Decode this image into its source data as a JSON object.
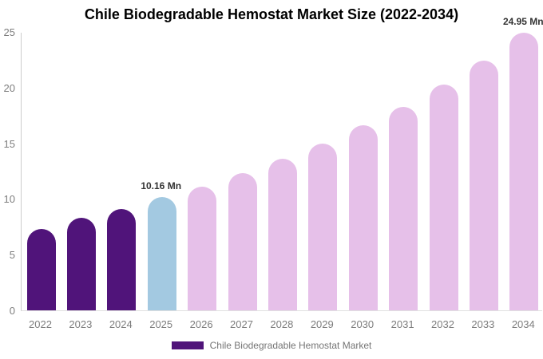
{
  "title": "Chile Biodegradable Hemostat Market Size (2022-2034)",
  "legend": {
    "label": "Chile Biodegradable Hemostat Market",
    "swatch_color": "#50147a"
  },
  "colors": {
    "historical_bar": "#50147a",
    "base_year_bar": "#a3c9e1",
    "forecast_bar": "#e6c0e9",
    "axis_text": "#7d7d7d",
    "label_text": "#333333"
  },
  "chart_data": {
    "type": "bar",
    "title": "Chile Biodegradable Hemostat Market Size (2022-2034)",
    "unit": "Mn",
    "categories": [
      "2022",
      "2023",
      "2024",
      "2025",
      "2026",
      "2027",
      "2028",
      "2029",
      "2030",
      "2031",
      "2032",
      "2033",
      "2034"
    ],
    "values": [
      7.3,
      8.3,
      9.1,
      10.16,
      11.1,
      12.3,
      13.6,
      15.0,
      16.6,
      18.3,
      20.3,
      22.4,
      24.95
    ],
    "bar_colors": [
      "#50147a",
      "#50147a",
      "#50147a",
      "#a3c9e1",
      "#e6c0e9",
      "#e6c0e9",
      "#e6c0e9",
      "#e6c0e9",
      "#e6c0e9",
      "#e6c0e9",
      "#e6c0e9",
      "#e6c0e9",
      "#e6c0e9"
    ],
    "data_labels": [
      {
        "category": "2025",
        "text": "10.16 Mn"
      },
      {
        "category": "2034",
        "text": "24.95 Mn"
      }
    ],
    "xlabel": "",
    "ylabel": "",
    "ylim": [
      0,
      25
    ],
    "yticks": [
      0,
      5,
      10,
      15,
      20,
      25
    ],
    "grid": false,
    "legend_position": "bottom",
    "legend": [
      "Chile Biodegradable Hemostat Market"
    ]
  }
}
